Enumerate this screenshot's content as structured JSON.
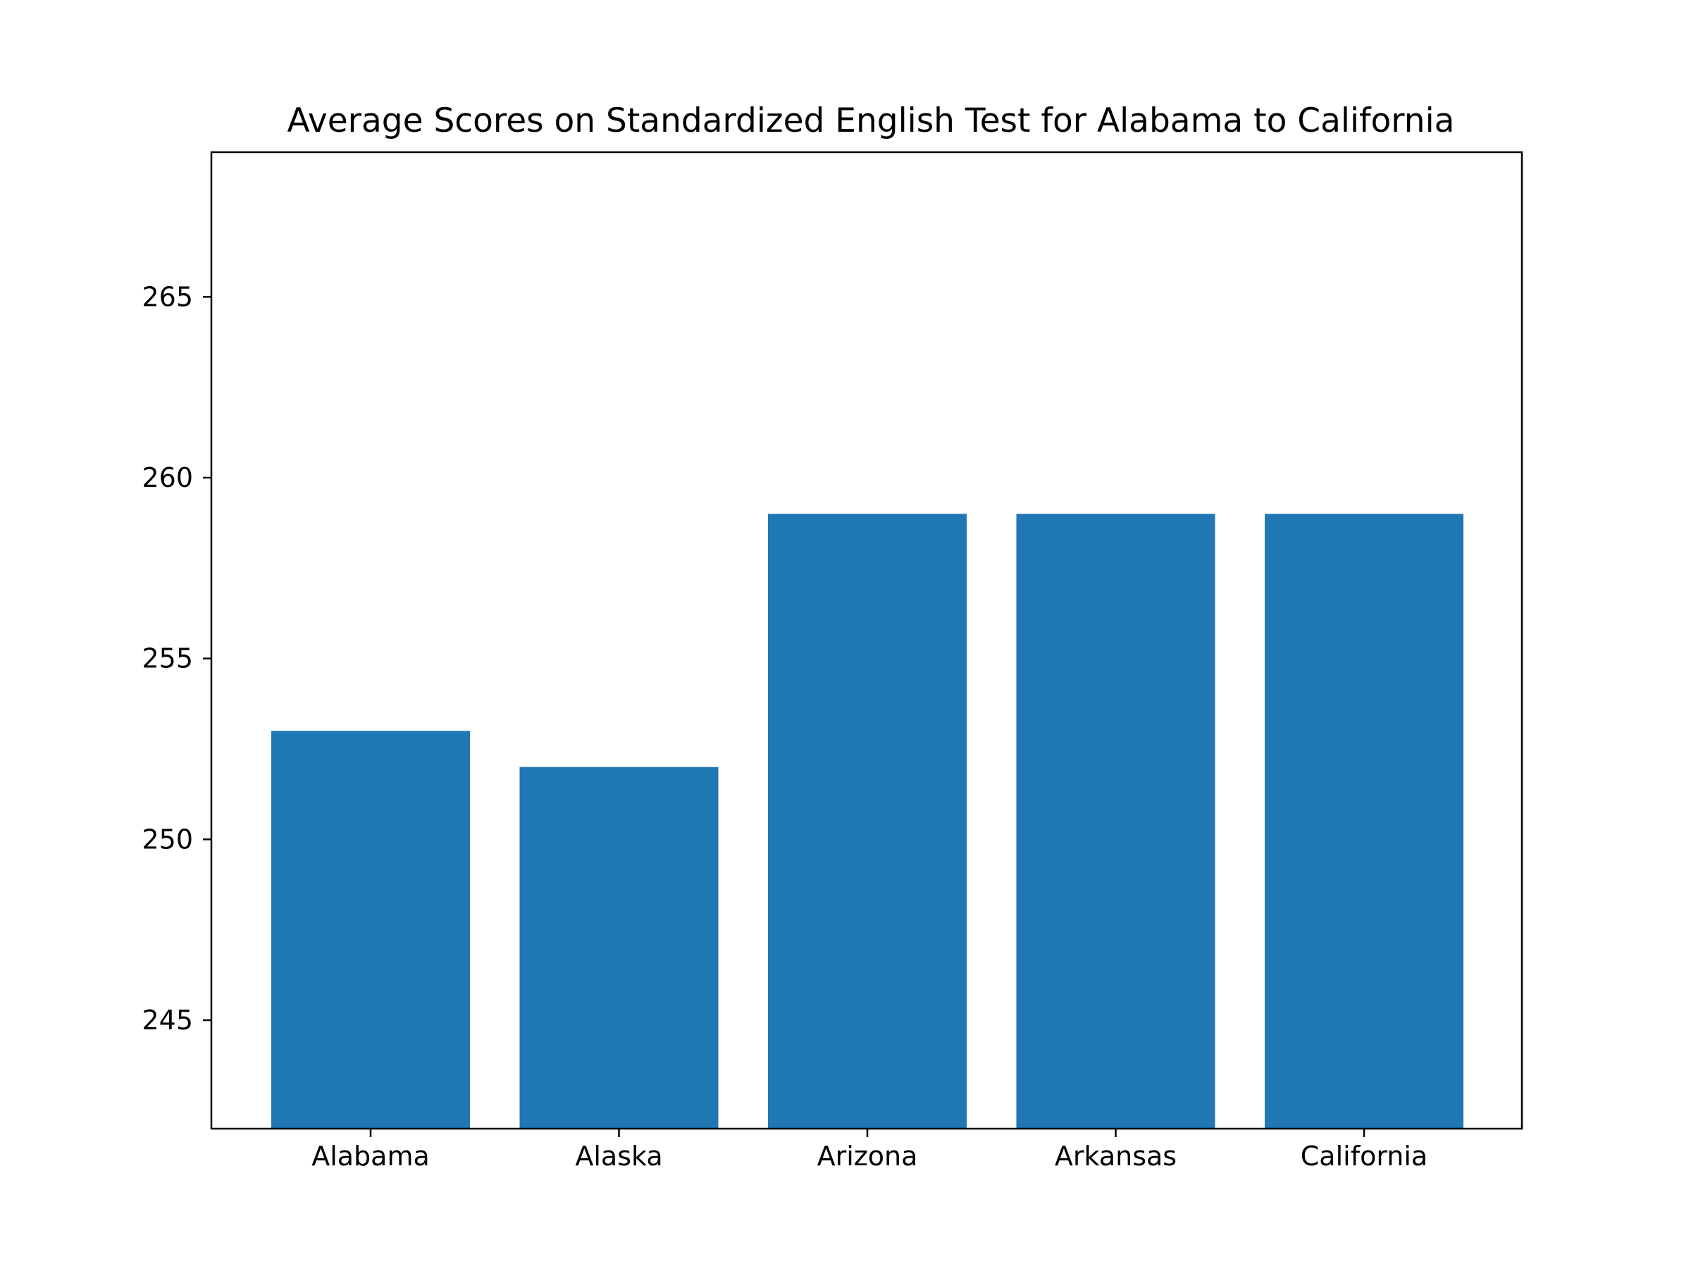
{
  "chart_data": {
    "type": "bar",
    "title": "Average Scores on Standardized English Test for Alabama to California",
    "xlabel": "",
    "ylabel": "",
    "categories": [
      "Alabama",
      "Alaska",
      "Arizona",
      "Arkansas",
      "California"
    ],
    "values": [
      253,
      252,
      259,
      259,
      259
    ],
    "ylim": [
      242,
      269
    ],
    "yticks": [
      245,
      250,
      255,
      260,
      265
    ],
    "grid": false,
    "legend": "none",
    "bar_color": "#1f77b4",
    "axis_color": "#000000"
  }
}
